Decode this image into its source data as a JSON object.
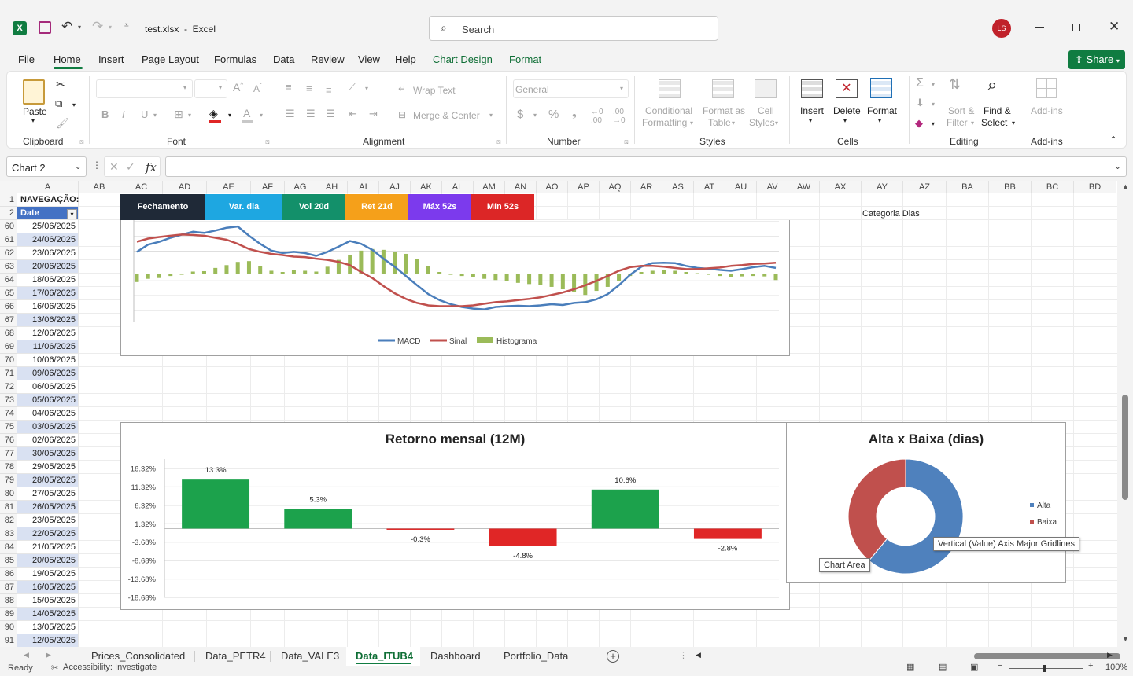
{
  "app": {
    "file_title": "test.xlsx  -  Excel",
    "search_placeholder": "Search",
    "user_initials": "LS",
    "share_label": "Share"
  },
  "menu": [
    "File",
    "Home",
    "Insert",
    "Page Layout",
    "Formulas",
    "Data",
    "Review",
    "View",
    "Help",
    "Chart Design",
    "Format"
  ],
  "ribbon": {
    "clipboard": {
      "paste": "Paste",
      "group": "Clipboard"
    },
    "font": {
      "group": "Font"
    },
    "alignment": {
      "wrap_text": "Wrap Text",
      "merge_center": "Merge & Center",
      "group": "Alignment"
    },
    "number": {
      "format": "General",
      "group": "Number"
    },
    "styles": {
      "conditional": "Conditional",
      "conditional2": "Formatting",
      "format_as": "Format as",
      "format_as2": "Table",
      "cell": "Cell",
      "cell2": "Styles",
      "group": "Styles"
    },
    "cells": {
      "insert": "Insert",
      "delete": "Delete",
      "format": "Format",
      "group": "Cells"
    },
    "editing": {
      "sort": "Sort &",
      "sort2": "Filter",
      "find": "Find &",
      "find2": "Select",
      "group": "Editing"
    },
    "addins": {
      "label": "Add-ins",
      "group": "Add-ins"
    }
  },
  "formula_bar": {
    "name_box": "Chart 2",
    "fx": "fx",
    "value": ""
  },
  "columns": [
    "A",
    "AB",
    "AC",
    "AD",
    "AE",
    "AF",
    "AG",
    "AH",
    "AI",
    "AJ",
    "AK",
    "AL",
    "AM",
    "AN",
    "AO",
    "AP",
    "AQ",
    "AR",
    "AS",
    "AT",
    "AU",
    "AV",
    "AW",
    "AX",
    "AY",
    "AZ",
    "BA",
    "BB",
    "BC",
    "BD"
  ],
  "rows": [
    {
      "n": "1",
      "a": "NAVEGAÇÃO:"
    },
    {
      "n": "2",
      "a": "Date"
    },
    {
      "n": "60",
      "a": "25/06/2025"
    },
    {
      "n": "61",
      "a": "24/06/2025"
    },
    {
      "n": "62",
      "a": "23/06/2025"
    },
    {
      "n": "63",
      "a": "20/06/2025"
    },
    {
      "n": "64",
      "a": "18/06/2025"
    },
    {
      "n": "65",
      "a": "17/06/2025"
    },
    {
      "n": "66",
      "a": "16/06/2025"
    },
    {
      "n": "67",
      "a": "13/06/2025"
    },
    {
      "n": "68",
      "a": "12/06/2025"
    },
    {
      "n": "69",
      "a": "11/06/2025"
    },
    {
      "n": "70",
      "a": "10/06/2025"
    },
    {
      "n": "71",
      "a": "09/06/2025"
    },
    {
      "n": "72",
      "a": "06/06/2025"
    },
    {
      "n": "73",
      "a": "05/06/2025"
    },
    {
      "n": "74",
      "a": "04/06/2025"
    },
    {
      "n": "75",
      "a": "03/06/2025"
    },
    {
      "n": "76",
      "a": "02/06/2025"
    },
    {
      "n": "77",
      "a": "30/05/2025"
    },
    {
      "n": "78",
      "a": "29/05/2025"
    },
    {
      "n": "79",
      "a": "28/05/2025"
    },
    {
      "n": "80",
      "a": "27/05/2025"
    },
    {
      "n": "81",
      "a": "26/05/2025"
    },
    {
      "n": "82",
      "a": "23/05/2025"
    },
    {
      "n": "83",
      "a": "22/05/2025"
    },
    {
      "n": "84",
      "a": "21/05/2025"
    },
    {
      "n": "85",
      "a": "20/05/2025"
    },
    {
      "n": "86",
      "a": "19/05/2025"
    },
    {
      "n": "87",
      "a": "16/05/2025"
    },
    {
      "n": "88",
      "a": "15/05/2025"
    },
    {
      "n": "89",
      "a": "14/05/2025"
    },
    {
      "n": "90",
      "a": "13/05/2025"
    },
    {
      "n": "91",
      "a": "12/05/2025"
    }
  ],
  "nav_buttons": [
    {
      "label": "Fechamento",
      "color": "#1f2937"
    },
    {
      "label": "Var. dia",
      "color": "#1ea7e1"
    },
    {
      "label": "Vol 20d",
      "color": "#13906a"
    },
    {
      "label": "Ret 21d",
      "color": "#f5a01a"
    },
    {
      "label": "Máx 52s",
      "color": "#7c3aed"
    },
    {
      "label": "Mín 52s",
      "color": "#dc2626"
    }
  ],
  "categoria_label": "Categoria Dias",
  "chart_data": [
    {
      "type": "line",
      "title": "",
      "legend_position": "bottom",
      "series": [
        {
          "name": "MACD",
          "color": "#4a7ebb",
          "values": [
            0.55,
            0.73,
            0.8,
            0.9,
            0.98,
            1.05,
            1.02,
            1.08,
            1.15,
            1.18,
            0.95,
            0.75,
            0.58,
            0.52,
            0.55,
            0.52,
            0.45,
            0.55,
            0.68,
            0.82,
            0.75,
            0.6,
            0.38,
            0.18,
            -0.05,
            -0.28,
            -0.5,
            -0.65,
            -0.75,
            -0.82,
            -0.86,
            -0.88,
            -0.82,
            -0.8,
            -0.79,
            -0.8,
            -0.78,
            -0.75,
            -0.77,
            -0.72,
            -0.7,
            -0.63,
            -0.5,
            -0.28,
            -0.02,
            0.18,
            0.27,
            0.28,
            0.27,
            0.2,
            0.15,
            0.13,
            0.1,
            0.08,
            0.12,
            0.17,
            0.2,
            0.15
          ]
        },
        {
          "name": "Sinal",
          "color": "#c0504d",
          "values": [
            0.8,
            0.88,
            0.92,
            0.95,
            0.98,
            0.97,
            0.95,
            0.9,
            0.85,
            0.75,
            0.62,
            0.55,
            0.5,
            0.47,
            0.43,
            0.42,
            0.38,
            0.35,
            0.3,
            0.22,
            0.05,
            -0.1,
            -0.3,
            -0.48,
            -0.62,
            -0.72,
            -0.78,
            -0.8,
            -0.8,
            -0.8,
            -0.78,
            -0.74,
            -0.7,
            -0.68,
            -0.65,
            -0.62,
            -0.58,
            -0.52,
            -0.46,
            -0.38,
            -0.28,
            -0.17,
            -0.05,
            0.08,
            0.17,
            0.2,
            0.2,
            0.18,
            0.15,
            0.12,
            0.12,
            0.14,
            0.16,
            0.2,
            0.22,
            0.25,
            0.26,
            0.28
          ]
        },
        {
          "name": "Histograma",
          "color": "#9bbb59",
          "values": [
            -0.2,
            -0.12,
            -0.1,
            -0.05,
            0.0,
            0.06,
            0.07,
            0.15,
            0.22,
            0.3,
            0.32,
            0.2,
            0.08,
            0.05,
            0.1,
            0.08,
            0.06,
            0.18,
            0.35,
            0.48,
            0.58,
            0.62,
            0.6,
            0.55,
            0.5,
            0.38,
            0.2,
            0.05,
            -0.02,
            -0.05,
            -0.08,
            -0.12,
            -0.15,
            -0.18,
            -0.22,
            -0.25,
            -0.28,
            -0.32,
            -0.38,
            -0.45,
            -0.52,
            -0.42,
            -0.32,
            -0.18,
            -0.05,
            0.05,
            0.08,
            0.1,
            0.08,
            0.05,
            0.02,
            -0.02,
            -0.05,
            -0.08,
            -0.06,
            -0.05,
            -0.06,
            -0.15
          ]
        }
      ]
    },
    {
      "type": "bar",
      "title": "Retorno mensal (12M)",
      "categories": [
        "",
        "",
        "",
        "",
        "",
        ""
      ],
      "values": [
        13.3,
        5.3,
        -0.3,
        -4.8,
        10.6,
        -2.8
      ],
      "value_labels": [
        "13.3%",
        "5.3%",
        "-0.3%",
        "-4.8%",
        "10.6%",
        "-2.8%"
      ],
      "y_ticks": [
        "16.32%",
        "11.32%",
        "6.32%",
        "1.32%",
        "-3.68%",
        "-8.68%",
        "-13.68%",
        "-18.68%"
      ],
      "ylim": [
        -18.68,
        16.32
      ],
      "pos_color": "#1ca24c",
      "neg_color": "#e02626"
    },
    {
      "type": "pie",
      "title": "Alta x Baixa (dias)",
      "labels": [
        "Alta",
        "Baixa"
      ],
      "values": [
        61,
        39
      ],
      "colors": [
        "#4f81bd",
        "#c0504d"
      ]
    }
  ],
  "tooltips": {
    "gridlines": "Vertical (Value) Axis Major Gridlines",
    "chart_area": "Chart Area"
  },
  "sheets": [
    "Prices_Consolidated",
    "Data_PETR4",
    "Data_VALE3",
    "Data_ITUB4",
    "Dashboard",
    "Portfolio_Data"
  ],
  "active_sheet": "Data_ITUB4",
  "status": {
    "ready": "Ready",
    "accessibility": "Accessibility: Investigate",
    "zoom": "100%"
  }
}
